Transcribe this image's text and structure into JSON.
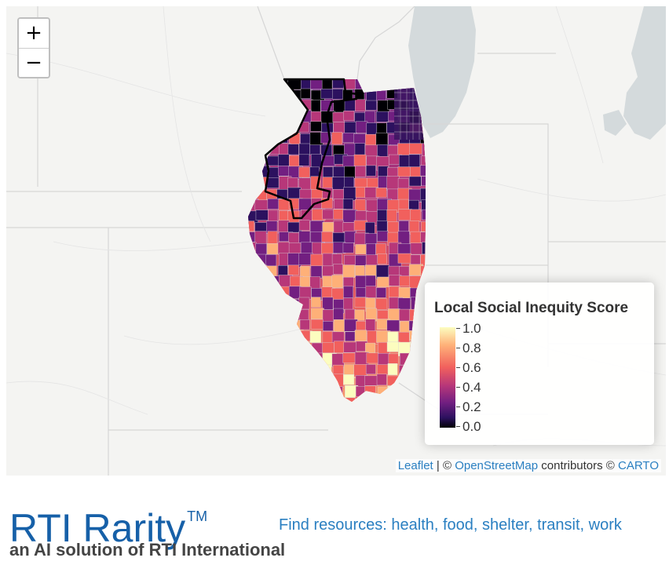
{
  "map": {
    "zoom_in_label": "+",
    "zoom_out_label": "−",
    "basemap": "CARTO Positron",
    "region_shown": "Illinois census tracts",
    "highlighted_boundary_color": "#000000"
  },
  "legend": {
    "title": "Local Social Inequity Score",
    "ticks": [
      "1.0",
      "0.8",
      "0.6",
      "0.4",
      "0.2",
      "0.0"
    ],
    "scale_colors": [
      "#000004",
      "#2c115f",
      "#721f81",
      "#b73779",
      "#f1605d",
      "#feb078",
      "#fcfdbf"
    ]
  },
  "attribution": {
    "leaflet": "Leaflet",
    "separator": " | © ",
    "osm": "OpenStreetMap",
    "contributors": " contributors © ",
    "carto": "CARTO"
  },
  "footer": {
    "brand": "RTI Rarity",
    "tm": "TM",
    "tagline": "an AI solution of RTI International",
    "find_text": "Find resources: health, food, shelter, transit, work"
  },
  "colors": {
    "brand_blue": "#1660a8",
    "link_blue": "#2a7fc1",
    "lake": "#d4dadc",
    "land": "#f4f4f2"
  }
}
